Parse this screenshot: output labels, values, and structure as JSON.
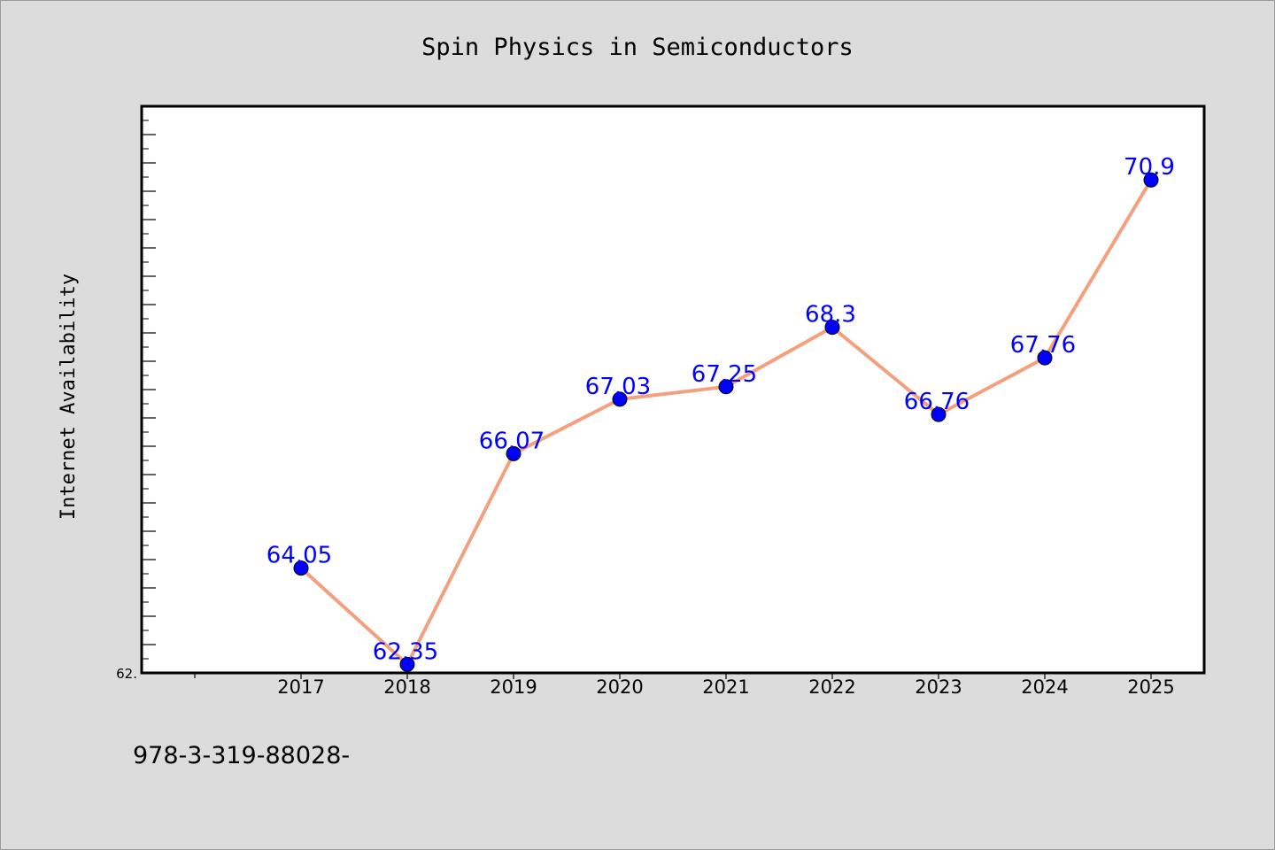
{
  "chart_data": {
    "type": "line",
    "title": "Spin Physics in Semiconductors",
    "ylabel": "Internet Availability",
    "xlabel": "",
    "categories": [
      "2017",
      "2018",
      "2019",
      "2020",
      "2021",
      "2022",
      "2023",
      "2024",
      "2025"
    ],
    "values": [
      64.05,
      62.35,
      66.07,
      67.03,
      67.25,
      68.3,
      66.76,
      67.76,
      70.9
    ],
    "data_labels": [
      "64.05",
      "62.35",
      "66.07",
      "67.03",
      "67.25",
      "68.3",
      "66.76",
      "67.76",
      "70.9"
    ],
    "ylim": [
      62.2,
      72.2
    ],
    "y_min_label": "62.",
    "grid": false,
    "line_color": "#f4a07e",
    "marker_color": "#0000ff",
    "label_color": "#0000ff"
  },
  "footnote": "978-3-319-88028-"
}
